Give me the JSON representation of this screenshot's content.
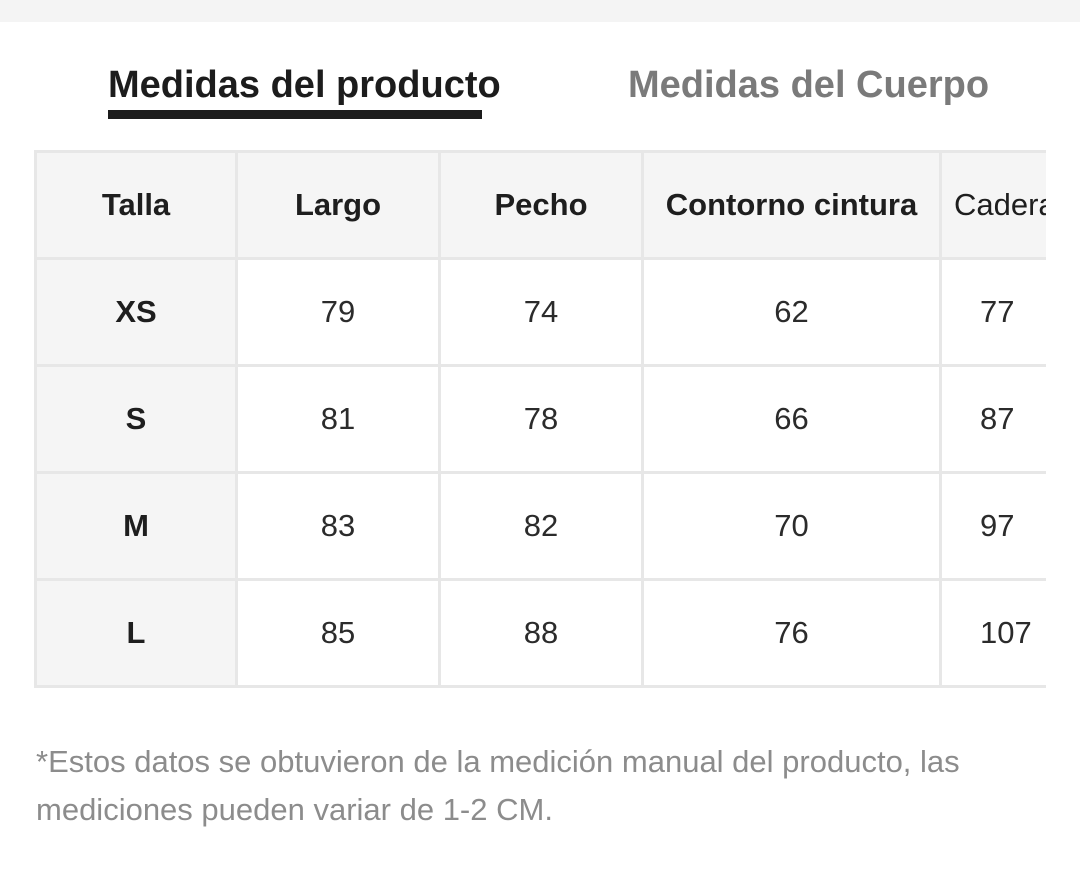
{
  "tabs": {
    "active_label": "Medidas del producto",
    "inactive_label": "Medidas del Cuerpo"
  },
  "table": {
    "headers": [
      "Talla",
      "Largo",
      "Pecho",
      "Contorno cintura",
      "Caderas"
    ],
    "rows": [
      [
        "XS",
        "79",
        "74",
        "62",
        "77"
      ],
      [
        "S",
        "81",
        "78",
        "66",
        "87"
      ],
      [
        "M",
        "83",
        "82",
        "70",
        "97"
      ],
      [
        "L",
        "85",
        "88",
        "76",
        "107"
      ]
    ]
  },
  "footnote": "*Estos datos se obtuvieron de la medición manual del producto, las mediciones pueden variar de 1-2 CM.",
  "colors": {
    "active_tab": "#1c1c1c",
    "inactive_tab": "#7a7a7a",
    "header_bg": "#f5f5f5",
    "border": "#e7e7e7",
    "footnote": "#8c8c8c"
  }
}
